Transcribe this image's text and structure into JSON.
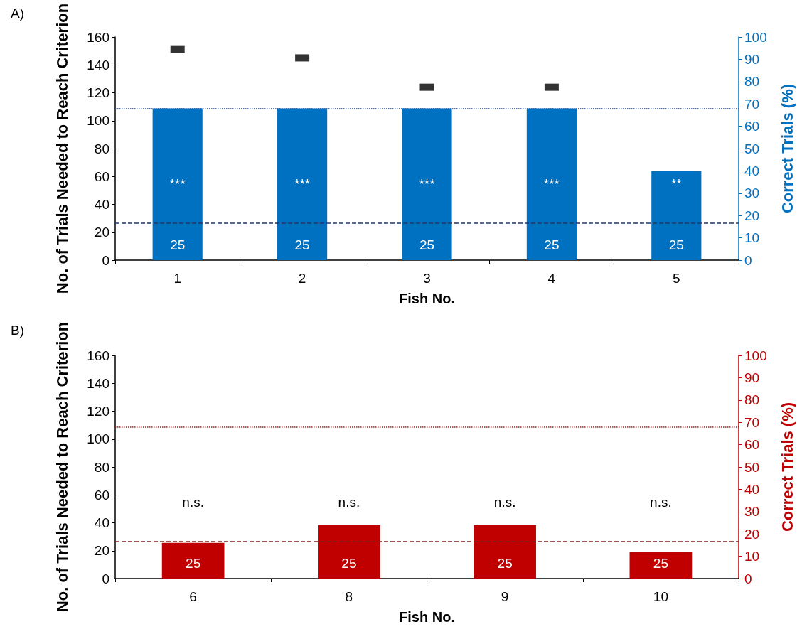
{
  "chart_data": [
    {
      "type": "bar",
      "title": "A)",
      "xlabel": "Fish No.",
      "ylabel": "No. of Trials Needed to Reach Criterion",
      "y2label": "Correct Trials (%)",
      "categories": [
        "1",
        "2",
        "3",
        "4",
        "5"
      ],
      "series": [
        {
          "axis": "y2",
          "color": "#0070c0",
          "values": [
            68,
            68,
            68,
            68,
            40
          ]
        },
        {
          "type": "scatter",
          "axis": "y",
          "color": "#000000",
          "marker": "square",
          "values": [
            151,
            145,
            124,
            124,
            null
          ]
        }
      ],
      "ylim": [
        0,
        160
      ],
      "yticks": [
        0,
        20,
        40,
        60,
        80,
        100,
        120,
        140,
        160
      ],
      "y2lim": [
        0,
        100
      ],
      "y2ticks": [
        0,
        10,
        20,
        30,
        40,
        50,
        60,
        70,
        80,
        90,
        100
      ],
      "ref_lines": [
        {
          "axis": "y2",
          "value": 68,
          "color": "#2f4f8f",
          "line_style": "dotted"
        },
        {
          "axis": "y2",
          "value": 16.7,
          "color": "#1f3864",
          "line_style": "dashed"
        }
      ],
      "annotations": [
        "***",
        "***",
        "***",
        "***",
        "**",
        "25",
        "25",
        "25",
        "25",
        "25"
      ],
      "grid": false
    },
    {
      "type": "bar",
      "title": "B)",
      "xlabel": "Fish No.",
      "ylabel": "No. of Trials Needed to Reach Criterion",
      "y2label": "Correct Trials (%)",
      "categories": [
        "6",
        "8",
        "9",
        "10"
      ],
      "series": [
        {
          "axis": "y2",
          "color": "#c00000",
          "values": [
            16,
            24,
            24,
            12
          ]
        }
      ],
      "ylim": [
        0,
        160
      ],
      "yticks": [
        0,
        20,
        40,
        60,
        80,
        100,
        120,
        140,
        160
      ],
      "y2lim": [
        0,
        100
      ],
      "y2ticks": [
        0,
        10,
        20,
        30,
        40,
        50,
        60,
        70,
        80,
        90,
        100
      ],
      "ref_lines": [
        {
          "axis": "y2",
          "value": 68,
          "color": "#8b2a2a",
          "line_style": "dotted"
        },
        {
          "axis": "y2",
          "value": 16.7,
          "color": "#7f1f1f",
          "line_style": "dashed"
        }
      ],
      "annotations": [
        "n.s.",
        "n.s.",
        "n.s.",
        "n.s.",
        "25",
        "25",
        "25",
        "25"
      ],
      "grid": false
    }
  ]
}
